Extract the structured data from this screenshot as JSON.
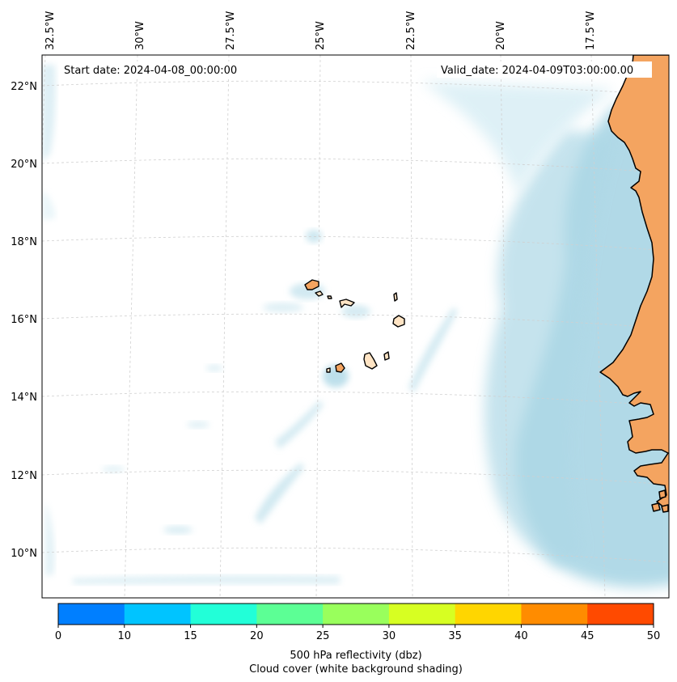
{
  "header": {
    "start_date": "Start date: 2024-04-08_00:00:00",
    "valid_date": "Valid_date: 2024-04-09T03:00:00.00"
  },
  "lon_labels": [
    "32.5°W",
    "30°W",
    "27.5°W",
    "25°W",
    "22.5°W",
    "20°W",
    "17.5°W"
  ],
  "lat_labels": [
    "22°N",
    "20°N",
    "18°N",
    "16°N",
    "14°N",
    "12°N",
    "10°N"
  ],
  "colorbar": {
    "ticks": [
      "0",
      "10",
      "15",
      "20",
      "25",
      "30",
      "35",
      "40",
      "45",
      "50"
    ],
    "colors": [
      "#007fff",
      "#00c4ff",
      "#22ffd8",
      "#5cff95",
      "#99ff5c",
      "#d7ff22",
      "#ffd600",
      "#ff8c00",
      "#ff4a00"
    ],
    "label_line1": "500 hPa reflectivity (dbz)",
    "label_line2": "Cloud cover (white background shading)"
  },
  "colors": {
    "land": "#f4a460",
    "cloud": "#add8e6",
    "coast": "#000000",
    "grid": "#d0d0d0"
  }
}
